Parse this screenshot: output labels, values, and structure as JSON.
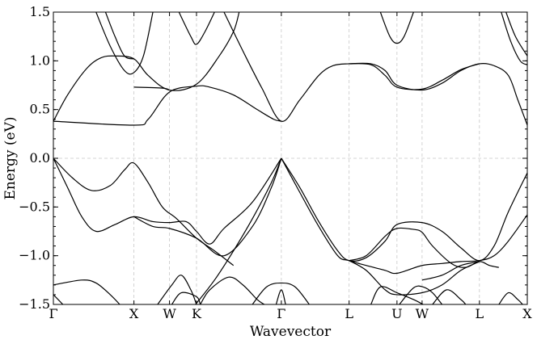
{
  "chart_data": {
    "type": "line",
    "title": "",
    "xlabel": "Wavevector",
    "ylabel": "Energy (eV)",
    "ylim": [
      -1.5,
      1.5
    ],
    "xlim": [
      0,
      1
    ],
    "grid": true,
    "k_points": [
      {
        "label": "Γ",
        "x": 0.0
      },
      {
        "label": "X",
        "x": 0.17
      },
      {
        "label": "W",
        "x": 0.245
      },
      {
        "label": "K",
        "x": 0.302
      },
      {
        "label": "Γ",
        "x": 0.481
      },
      {
        "label": "L",
        "x": 0.624
      },
      {
        "label": "U",
        "x": 0.725
      },
      {
        "label": "W",
        "x": 0.778
      },
      {
        "label": "L",
        "x": 0.899
      },
      {
        "label": "X",
        "x": 1.0
      }
    ],
    "y_ticks": [
      {
        "label": "1.5",
        "y": 1.5
      },
      {
        "label": "1.0",
        "y": 1.0
      },
      {
        "label": "0.5",
        "y": 0.5
      },
      {
        "label": "0.0",
        "y": 0.0
      },
      {
        "label": "−0.5",
        "y": -0.5
      },
      {
        "label": "−1.0",
        "y": -1.0
      },
      {
        "label": "−1.5",
        "y": -1.5
      }
    ],
    "series": [
      {
        "values": [
          [
            0,
            0.38
          ],
          [
            0.17,
            0.34
          ],
          [
            0.2,
            0.4
          ],
          [
            0.245,
            0.68
          ],
          [
            0.302,
            0.74
          ],
          [
            0.33,
            0.73
          ],
          [
            0.38,
            0.65
          ],
          [
            0.43,
            0.5
          ],
          [
            0.465,
            0.4
          ],
          [
            0.481,
            0.38
          ]
        ]
      },
      {
        "values": [
          [
            0,
            0.38
          ],
          [
            0.03,
            0.65
          ],
          [
            0.07,
            0.92
          ],
          [
            0.1,
            1.03
          ],
          [
            0.13,
            1.05
          ],
          [
            0.17,
            1.02
          ],
          [
            0.2,
            0.85
          ],
          [
            0.245,
            0.7
          ],
          [
            0.302,
            0.76
          ],
          [
            0.35,
            1.05
          ],
          [
            0.38,
            1.3
          ],
          [
            0.392,
            1.5
          ]
        ]
      },
      {
        "values": [
          [
            0.36,
            1.5
          ],
          [
            0.4,
            1.1
          ],
          [
            0.44,
            0.72
          ],
          [
            0.481,
            0.38
          ],
          [
            0.52,
            0.6
          ],
          [
            0.56,
            0.85
          ],
          [
            0.59,
            0.95
          ],
          [
            0.624,
            0.97
          ],
          [
            0.67,
            0.97
          ],
          [
            0.7,
            0.9
          ],
          [
            0.725,
            0.75
          ],
          [
            0.778,
            0.7
          ],
          [
            0.82,
            0.77
          ],
          [
            0.86,
            0.9
          ],
          [
            0.899,
            0.97
          ],
          [
            0.93,
            0.95
          ],
          [
            0.96,
            0.85
          ],
          [
            0.98,
            0.6
          ],
          [
            1.0,
            0.34
          ]
        ]
      },
      {
        "values": [
          [
            0.624,
            0.97
          ],
          [
            0.67,
            0.96
          ],
          [
            0.7,
            0.85
          ],
          [
            0.725,
            0.73
          ],
          [
            0.778,
            0.71
          ],
          [
            0.82,
            0.8
          ],
          [
            0.86,
            0.91
          ],
          [
            0.899,
            0.97
          ]
        ]
      },
      {
        "values": [
          [
            0.09,
            1.5
          ],
          [
            0.12,
            1.15
          ],
          [
            0.15,
            0.9
          ],
          [
            0.17,
            0.88
          ],
          [
            0.19,
            1.05
          ],
          [
            0.21,
            1.5
          ]
        ]
      },
      {
        "values": [
          [
            0.11,
            1.5
          ],
          [
            0.13,
            1.25
          ],
          [
            0.15,
            1.05
          ],
          [
            0.17,
            1.02
          ]
        ]
      },
      {
        "values": [
          [
            0.17,
            0.73
          ],
          [
            0.23,
            0.72
          ],
          [
            0.245,
            0.7
          ]
        ]
      },
      {
        "values": [
          [
            0.265,
            1.5
          ],
          [
            0.29,
            1.25
          ],
          [
            0.302,
            1.17
          ],
          [
            0.32,
            1.3
          ],
          [
            0.34,
            1.5
          ]
        ]
      },
      {
        "values": [
          [
            0.69,
            1.5
          ],
          [
            0.71,
            1.25
          ],
          [
            0.725,
            1.18
          ],
          [
            0.74,
            1.25
          ],
          [
            0.76,
            1.5
          ]
        ]
      },
      {
        "values": [
          [
            0.945,
            1.5
          ],
          [
            0.965,
            1.2
          ],
          [
            0.985,
            1.0
          ],
          [
            1.0,
            0.96
          ]
        ]
      },
      {
        "values": [
          [
            0.955,
            1.5
          ],
          [
            0.975,
            1.25
          ],
          [
            1.0,
            1.05
          ]
        ]
      },
      {
        "values": [
          [
            0,
            0.0
          ],
          [
            0.04,
            -0.2
          ],
          [
            0.08,
            -0.33
          ],
          [
            0.12,
            -0.28
          ],
          [
            0.15,
            -0.12
          ],
          [
            0.17,
            -0.05
          ],
          [
            0.2,
            -0.25
          ],
          [
            0.23,
            -0.5
          ],
          [
            0.26,
            -0.62
          ],
          [
            0.302,
            -0.82
          ],
          [
            0.34,
            -0.95
          ],
          [
            0.38,
            -1.1
          ]
        ]
      },
      {
        "values": [
          [
            0,
            0.0
          ],
          [
            0.03,
            -0.3
          ],
          [
            0.06,
            -0.6
          ],
          [
            0.09,
            -0.75
          ],
          [
            0.13,
            -0.68
          ],
          [
            0.17,
            -0.6
          ],
          [
            0.21,
            -0.65
          ],
          [
            0.245,
            -0.66
          ],
          [
            0.28,
            -0.65
          ],
          [
            0.302,
            -0.75
          ],
          [
            0.33,
            -0.88
          ],
          [
            0.36,
            -0.72
          ],
          [
            0.42,
            -0.45
          ],
          [
            0.481,
            0.0
          ]
        ]
      },
      {
        "values": [
          [
            0.17,
            -0.6
          ],
          [
            0.21,
            -0.7
          ],
          [
            0.245,
            -0.72
          ],
          [
            0.302,
            -0.82
          ],
          [
            0.36,
            -1.0
          ],
          [
            0.42,
            -0.7
          ],
          [
            0.46,
            -0.3
          ],
          [
            0.481,
            0.0
          ]
        ]
      },
      {
        "values": [
          [
            0.3,
            -1.5
          ],
          [
            0.34,
            -1.25
          ],
          [
            0.38,
            -0.95
          ],
          [
            0.42,
            -0.62
          ],
          [
            0.46,
            -0.25
          ],
          [
            0.481,
            0.0
          ]
        ]
      },
      {
        "values": [
          [
            0.481,
            0.0
          ],
          [
            0.52,
            -0.3
          ],
          [
            0.56,
            -0.65
          ],
          [
            0.6,
            -0.95
          ],
          [
            0.624,
            -1.05
          ],
          [
            0.66,
            -1.02
          ],
          [
            0.7,
            -0.85
          ],
          [
            0.725,
            -0.68
          ],
          [
            0.778,
            -0.66
          ],
          [
            0.82,
            -0.75
          ],
          [
            0.86,
            -0.92
          ],
          [
            0.899,
            -1.05
          ],
          [
            0.93,
            -0.9
          ],
          [
            0.96,
            -0.55
          ],
          [
            1.0,
            -0.15
          ]
        ]
      },
      {
        "values": [
          [
            0.481,
            0.0
          ],
          [
            0.52,
            -0.35
          ],
          [
            0.56,
            -0.7
          ],
          [
            0.6,
            -1.0
          ],
          [
            0.624,
            -1.05
          ],
          [
            0.66,
            -1.1
          ],
          [
            0.7,
            -1.15
          ],
          [
            0.725,
            -1.18
          ],
          [
            0.778,
            -1.1
          ],
          [
            0.82,
            -1.08
          ],
          [
            0.86,
            -1.06
          ],
          [
            0.899,
            -1.05
          ],
          [
            0.93,
            -1.0
          ],
          [
            0.96,
            -0.85
          ],
          [
            1.0,
            -0.58
          ]
        ]
      },
      {
        "values": [
          [
            0.624,
            -1.05
          ],
          [
            0.66,
            -1.0
          ],
          [
            0.7,
            -0.8
          ],
          [
            0.725,
            -0.72
          ],
          [
            0.76,
            -0.73
          ],
          [
            0.778,
            -0.76
          ],
          [
            0.8,
            -0.9
          ],
          [
            0.84,
            -1.08
          ],
          [
            0.87,
            -1.12
          ],
          [
            0.899,
            -1.06
          ],
          [
            0.92,
            -1.1
          ],
          [
            0.94,
            -1.12
          ]
        ]
      },
      {
        "values": [
          [
            0.624,
            -1.05
          ],
          [
            0.66,
            -1.15
          ],
          [
            0.7,
            -1.35
          ],
          [
            0.725,
            -1.4
          ],
          [
            0.778,
            -1.38
          ],
          [
            0.82,
            -1.3
          ],
          [
            0.86,
            -1.15
          ],
          [
            0.899,
            -1.06
          ]
        ]
      },
      {
        "values": [
          [
            0.778,
            -1.25
          ],
          [
            0.82,
            -1.2
          ],
          [
            0.86,
            -1.1
          ],
          [
            0.899,
            -1.06
          ]
        ]
      },
      {
        "values": [
          [
            0,
            -1.3
          ],
          [
            0.06,
            -1.25
          ],
          [
            0.09,
            -1.28
          ],
          [
            0.12,
            -1.4
          ],
          [
            0.14,
            -1.5
          ]
        ]
      },
      {
        "values": [
          [
            0,
            -1.4
          ],
          [
            0.02,
            -1.5
          ]
        ]
      },
      {
        "values": [
          [
            0.22,
            -1.5
          ],
          [
            0.25,
            -1.3
          ],
          [
            0.27,
            -1.2
          ],
          [
            0.29,
            -1.35
          ],
          [
            0.302,
            -1.5
          ]
        ]
      },
      {
        "values": [
          [
            0.25,
            -1.5
          ],
          [
            0.27,
            -1.38
          ],
          [
            0.302,
            -1.42
          ],
          [
            0.31,
            -1.5
          ]
        ]
      },
      {
        "values": [
          [
            0.31,
            -1.5
          ],
          [
            0.33,
            -1.35
          ],
          [
            0.37,
            -1.22
          ],
          [
            0.4,
            -1.3
          ],
          [
            0.43,
            -1.45
          ],
          [
            0.445,
            -1.5
          ]
        ]
      },
      {
        "values": [
          [
            0.42,
            -1.5
          ],
          [
            0.45,
            -1.32
          ],
          [
            0.481,
            -1.28
          ],
          [
            0.51,
            -1.32
          ],
          [
            0.54,
            -1.5
          ]
        ]
      },
      {
        "values": [
          [
            0.47,
            -1.5
          ],
          [
            0.481,
            -1.35
          ],
          [
            0.49,
            -1.5
          ]
        ]
      },
      {
        "values": [
          [
            0.67,
            -1.5
          ],
          [
            0.69,
            -1.32
          ],
          [
            0.725,
            -1.38
          ],
          [
            0.76,
            -1.45
          ],
          [
            0.78,
            -1.5
          ]
        ]
      },
      {
        "values": [
          [
            0.73,
            -1.5
          ],
          [
            0.76,
            -1.33
          ],
          [
            0.78,
            -1.32
          ],
          [
            0.8,
            -1.38
          ],
          [
            0.82,
            -1.5
          ]
        ]
      },
      {
        "values": [
          [
            0.8,
            -1.5
          ],
          [
            0.83,
            -1.35
          ],
          [
            0.86,
            -1.45
          ],
          [
            0.87,
            -1.5
          ]
        ]
      },
      {
        "values": [
          [
            0.94,
            -1.5
          ],
          [
            0.96,
            -1.38
          ],
          [
            0.98,
            -1.45
          ],
          [
            0.99,
            -1.5
          ]
        ]
      }
    ]
  }
}
